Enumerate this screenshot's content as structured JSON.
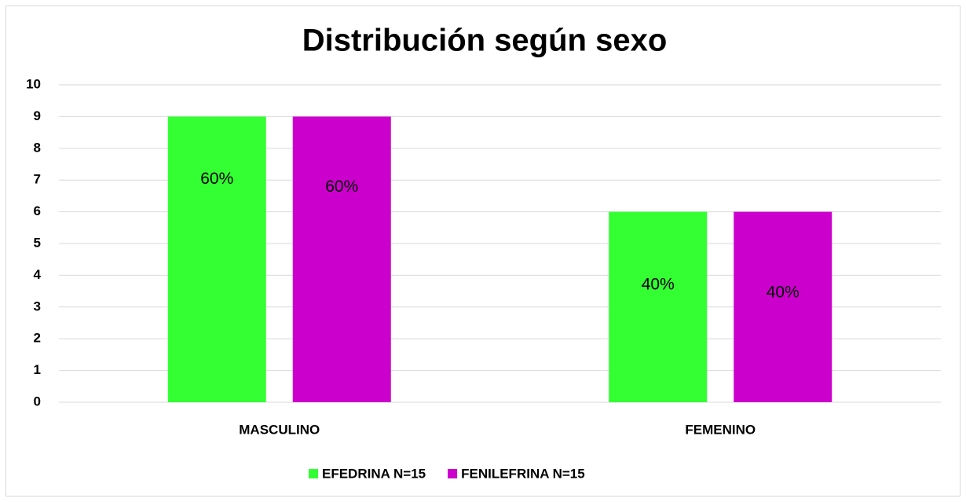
{
  "chart_data": {
    "type": "bar",
    "title": "Distribución según sexo",
    "categories": [
      "MASCULINO",
      "FEMENINO"
    ],
    "series": [
      {
        "name": "EFEDRINA N=15",
        "color": "#33ff33",
        "values": [
          9,
          6
        ],
        "value_labels": [
          "60%",
          "40%"
        ]
      },
      {
        "name": "FENILEFRINA N=15",
        "color": "#cc00cc",
        "values": [
          9,
          6
        ],
        "value_labels": [
          "60%",
          "40%"
        ]
      }
    ],
    "ylim": [
      0,
      10
    ],
    "yticks": [
      0,
      1,
      2,
      3,
      4,
      5,
      6,
      7,
      8,
      9,
      10
    ],
    "grid": true,
    "legend": "bottom"
  }
}
